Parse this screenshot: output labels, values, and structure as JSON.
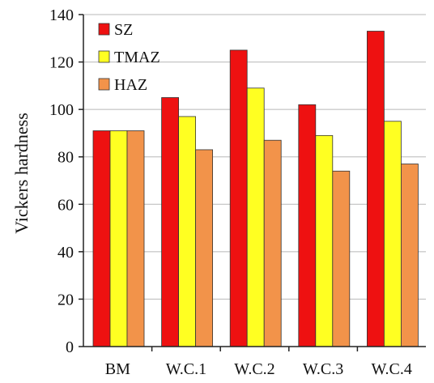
{
  "chart_data": {
    "type": "bar",
    "title": "",
    "xlabel": "",
    "ylabel": "Vickers hardness",
    "ylim": [
      0,
      140
    ],
    "yticks": [
      0,
      20,
      40,
      60,
      80,
      100,
      120,
      140
    ],
    "categories": [
      "BM",
      "W.C.1",
      "W.C.2",
      "W.C.3",
      "W.C.4"
    ],
    "series": [
      {
        "name": "SZ",
        "color": "#ee1111",
        "values": [
          91,
          105,
          125,
          102,
          133
        ]
      },
      {
        "name": "TMAZ",
        "color": "#ffff22",
        "values": [
          91,
          97,
          109,
          89,
          95
        ]
      },
      {
        "name": "HAZ",
        "color": "#f2934a",
        "values": [
          91,
          83,
          87,
          74,
          77
        ]
      }
    ],
    "grid": true,
    "legend_position": "top-left"
  }
}
